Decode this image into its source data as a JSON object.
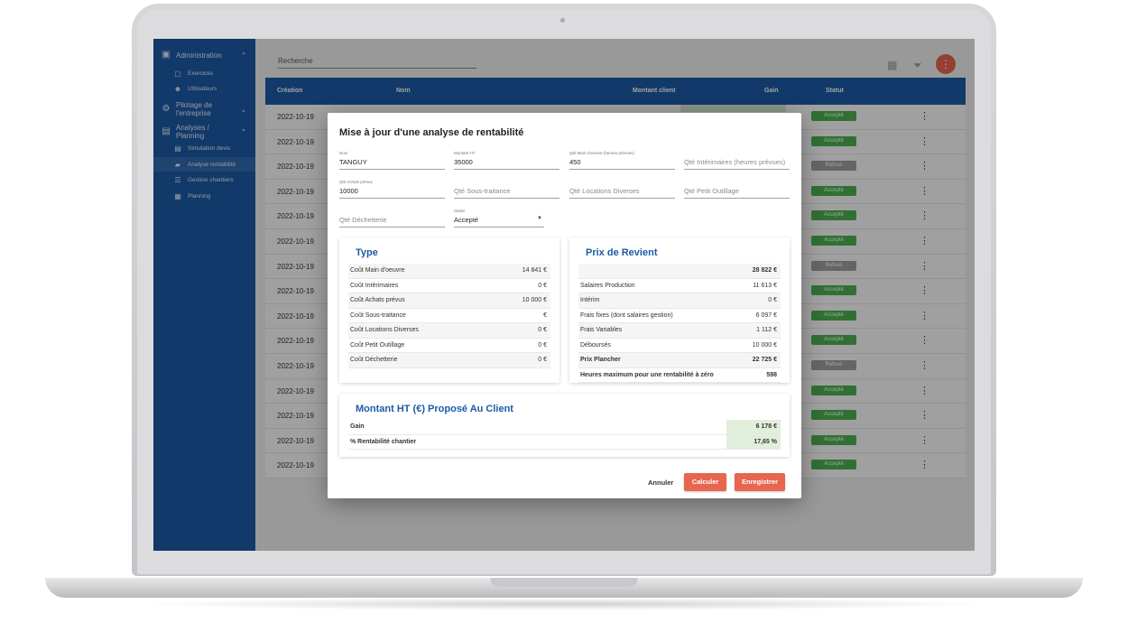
{
  "sidebar": {
    "groups": [
      {
        "label": "Administration",
        "icon": "briefcase-icon",
        "chevron": "chevron-up-icon"
      },
      {
        "label": "Pilotage de l'entreprise",
        "icon": "gear-icon",
        "chevron": "chevron-down-icon"
      },
      {
        "label": "Analyses / Planning",
        "icon": "chart-icon",
        "chevron": "chevron-up-icon"
      }
    ],
    "items": [
      {
        "label": "Exercices",
        "icon": "briefcase-icon"
      },
      {
        "label": "Utilisateurs",
        "icon": "users-icon"
      },
      {
        "label": "Simulation devis",
        "icon": "document-icon"
      },
      {
        "label": "Analyse rentabilité",
        "icon": "car-icon"
      },
      {
        "label": "Gestion chantiers",
        "icon": "list-icon"
      },
      {
        "label": "Planning",
        "icon": "calendar-icon"
      }
    ]
  },
  "header": {
    "search_placeholder": "Recherche"
  },
  "table": {
    "columns": [
      "Création",
      "Nom",
      "Montant client",
      "Gain",
      "Statut"
    ],
    "rows": [
      {
        "date": "2022-10-19",
        "status": "Accepté"
      },
      {
        "date": "2022-10-19",
        "status": "Accepté"
      },
      {
        "date": "2022-10-19",
        "status": "Refusé"
      },
      {
        "date": "2022-10-19",
        "status": "Accepté"
      },
      {
        "date": "2022-10-19",
        "status": "Accepté"
      },
      {
        "date": "2022-10-19",
        "status": "Accepté"
      },
      {
        "date": "2022-10-19",
        "status": "Refusé"
      },
      {
        "date": "2022-10-19",
        "status": "Accepté"
      },
      {
        "date": "2022-10-19",
        "status": "Accepté"
      },
      {
        "date": "2022-10-19",
        "status": "Accepté"
      },
      {
        "date": "2022-10-19",
        "status": "Refusé"
      },
      {
        "date": "2022-10-19",
        "status": "Accepté"
      },
      {
        "date": "2022-10-19",
        "status": "Accepté"
      },
      {
        "date": "2022-10-19",
        "status": "Accepté"
      },
      {
        "date": "2022-10-19",
        "status": "Accepté"
      }
    ]
  },
  "modal": {
    "title": "Mise à jour d'une analyse de rentabilité",
    "fields": {
      "nom": {
        "label": "Nom",
        "value": "TANGUY"
      },
      "montant_ht": {
        "label": "Montant HT",
        "value": "35000"
      },
      "qte_main": {
        "label": "Qté Main d'oeuvre (heures prévues)",
        "value": "450"
      },
      "qte_interim": {
        "placeholder": "Qté Intérimaires (heures prévues)"
      },
      "qte_achats": {
        "label": "Qté Achats prévus",
        "value": "10000"
      },
      "qte_sous": {
        "placeholder": "Qté Sous-traitance"
      },
      "qte_locations": {
        "placeholder": "Qté Locations Diverses"
      },
      "qte_outillage": {
        "placeholder": "Qté Petit Outillage"
      },
      "qte_dechetterie": {
        "placeholder": "Qté Déchetterie"
      },
      "statut": {
        "label": "Statut",
        "value": "Accepté"
      }
    },
    "type_card": {
      "title": "Type",
      "rows": [
        {
          "k": "Coût Main d'oeuvre",
          "v": "14 841 €"
        },
        {
          "k": "Coût Intérimaires",
          "v": "0 €"
        },
        {
          "k": "Coût Achats prévus",
          "v": "10 000 €"
        },
        {
          "k": "Coût Sous-traitance",
          "v": "€"
        },
        {
          "k": "Coût Locations Diverses",
          "v": "0 €"
        },
        {
          "k": "Coût Petit Outillage",
          "v": "0 €"
        },
        {
          "k": "Coût Déchetterie",
          "v": "0 €"
        }
      ]
    },
    "prix_card": {
      "title": "Prix de Revient",
      "rows": [
        {
          "k": "",
          "v": "28 822 €"
        },
        {
          "k": "Salaires Production",
          "v": "11 613 €"
        },
        {
          "k": "Intérim",
          "v": "0 €"
        },
        {
          "k": "Frais fixes (dont salaires gestion)",
          "v": "6 097 €"
        },
        {
          "k": "Frais Variables",
          "v": "1 112 €"
        },
        {
          "k": "Déboursés",
          "v": "10 000 €"
        },
        {
          "k": "Prix Plancher",
          "v": "22 725 €"
        },
        {
          "k": "Heures maximum pour une rentabilité à zéro",
          "v": "598"
        }
      ]
    },
    "client_card": {
      "title": "Montant HT (€) Proposé Au Client",
      "rows": [
        {
          "k": "Gain",
          "v": "6 178 €"
        },
        {
          "k": "% Rentabilité chantier",
          "v": "17,65 %"
        }
      ]
    },
    "buttons": {
      "cancel": "Annuler",
      "compute": "Calculer",
      "save": "Enregistrer"
    }
  },
  "colors": {
    "primary": "#1c5ba6",
    "accent": "#e8654f",
    "accepted": "#4caf50",
    "refused": "#9e9e9e"
  }
}
